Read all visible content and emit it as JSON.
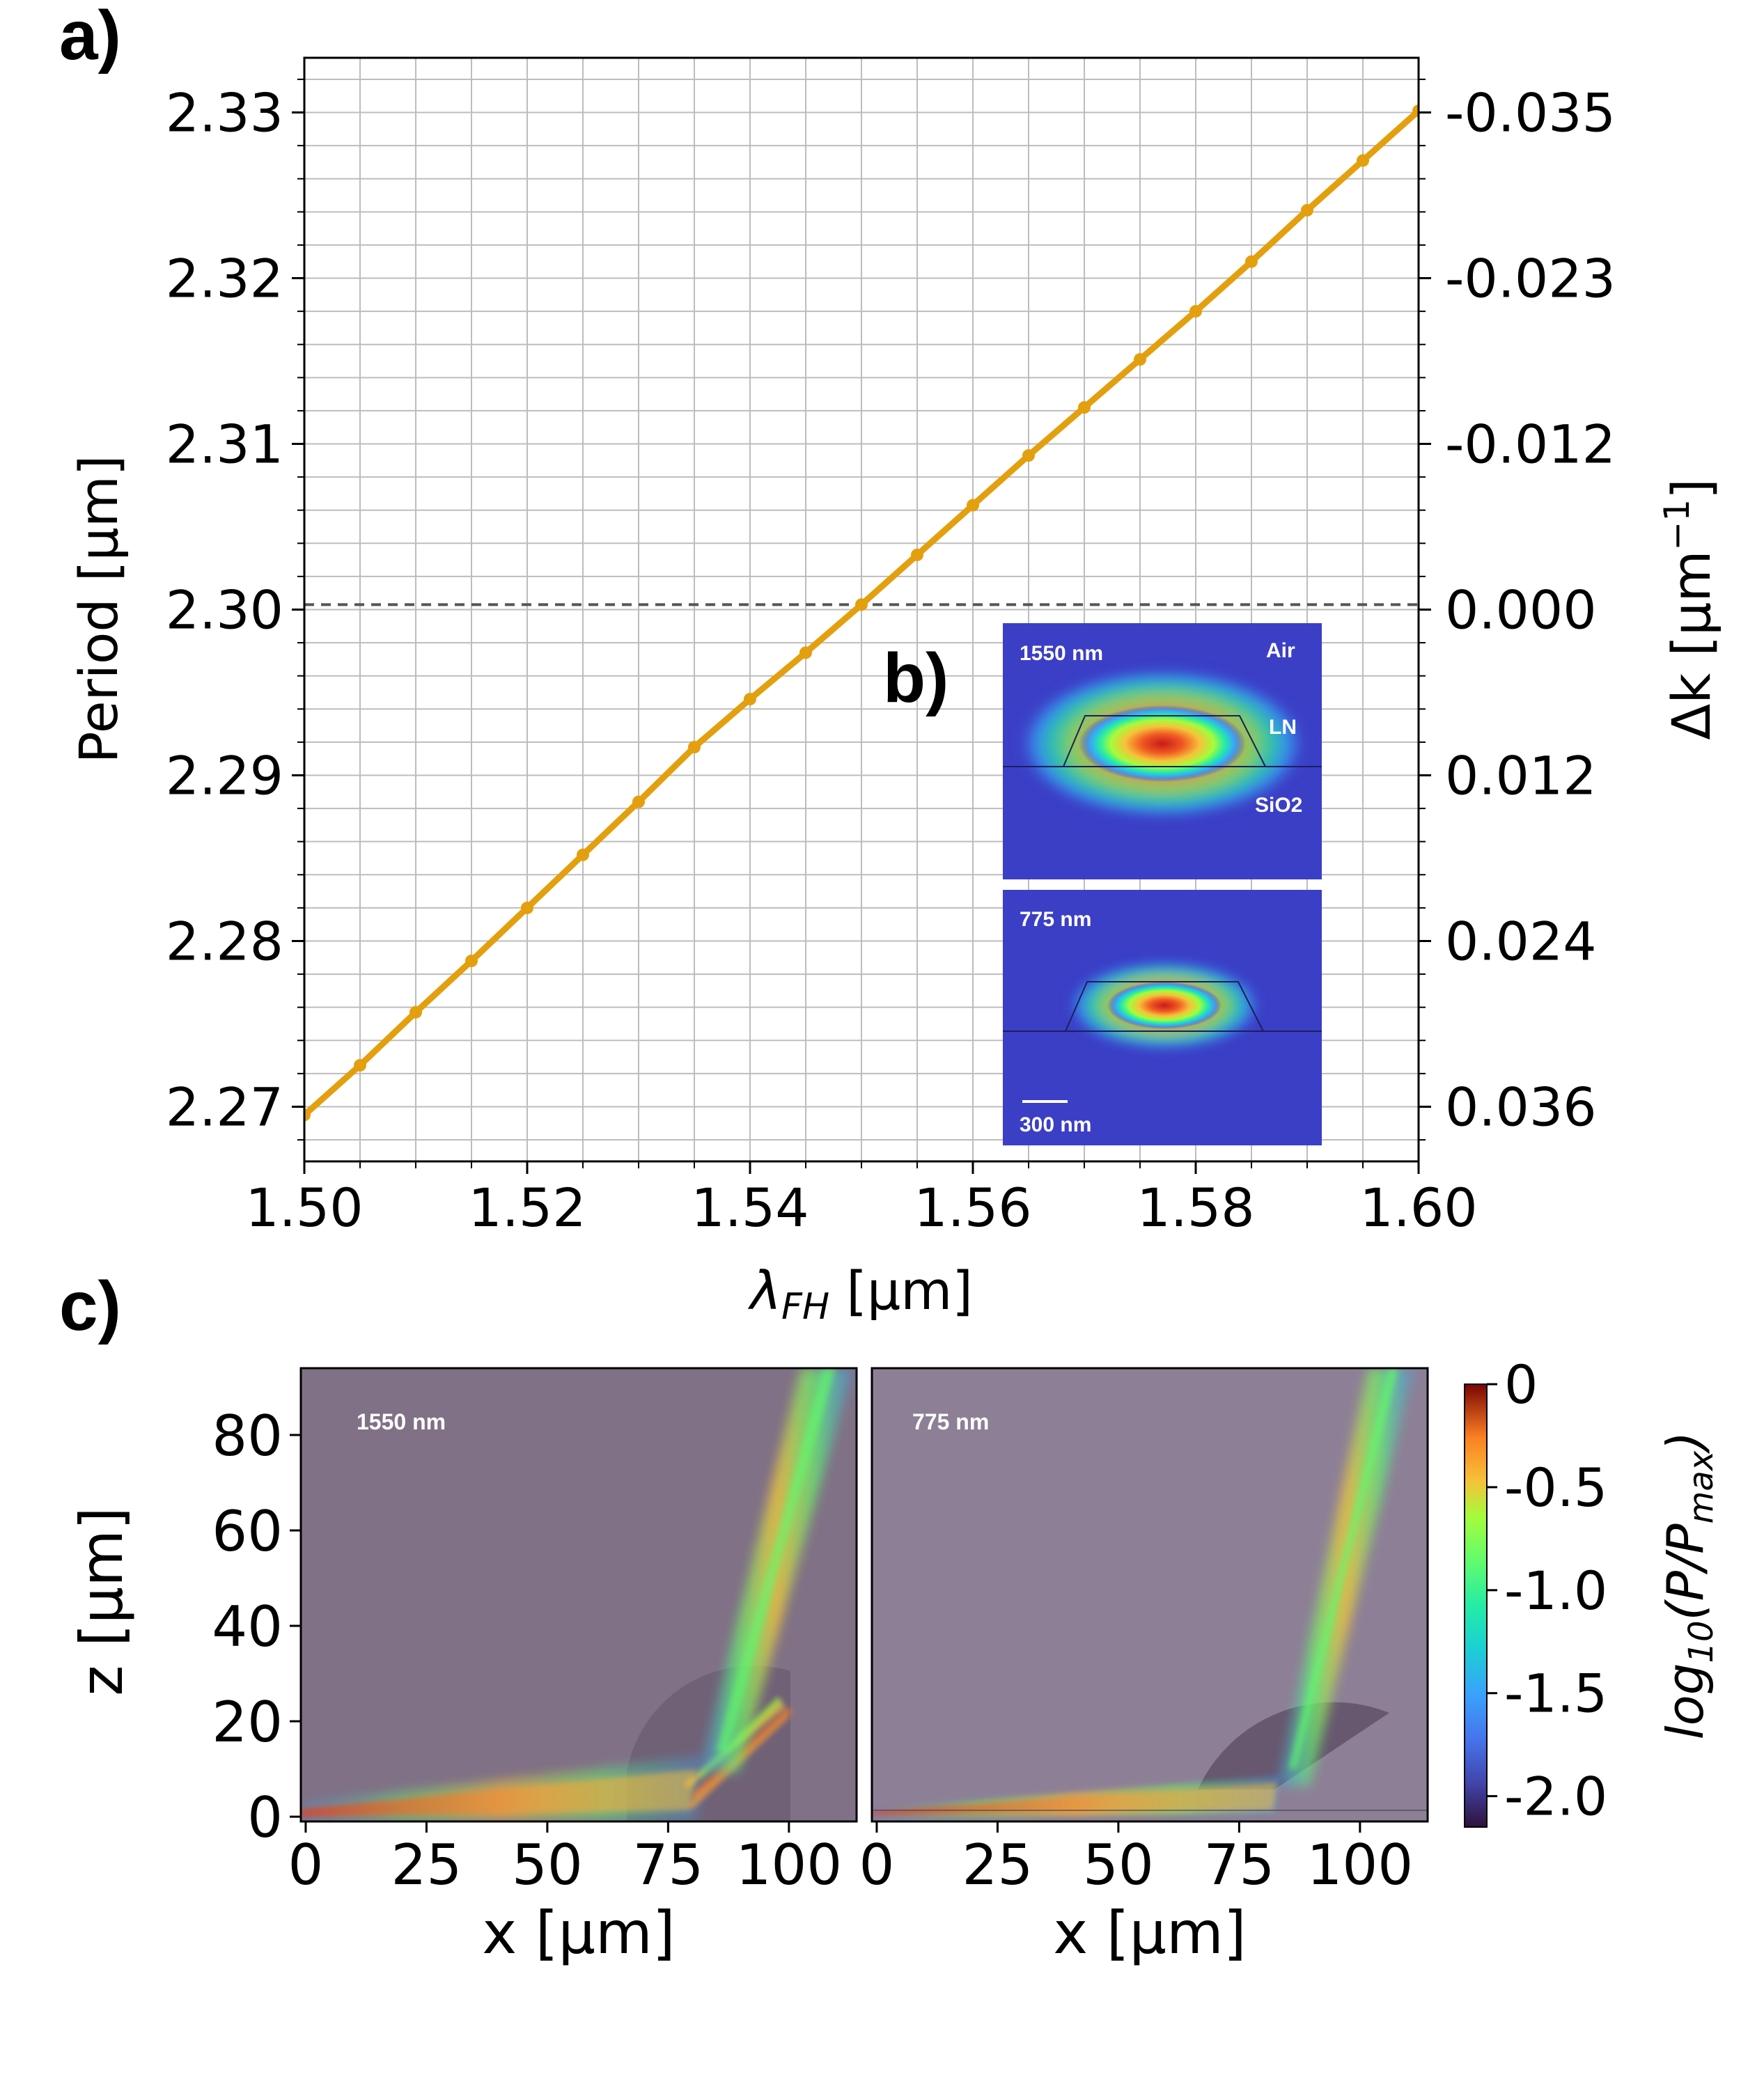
{
  "panel_labels": {
    "a": "a)",
    "b": "b)",
    "c": "c)"
  },
  "colors": {
    "curve": "#E39F0D",
    "grid": "#bdbdbd",
    "dashed": "#555555",
    "mode_bg": "#3b3fc6",
    "panel_bg_1550": "#807186",
    "panel_bg_775": "#8d8096"
  },
  "chart_data": [
    {
      "type": "line",
      "xlabel": "λFH [µm]",
      "xlabel_main": "λ",
      "xlabel_sub": "FH",
      "xlabel_unit": " [µm]",
      "ylabel": "Period [µm]",
      "y2label": "Δk [µm⁻¹]",
      "xlim": [
        1.5,
        1.6
      ],
      "ylim": [
        2.2667,
        2.3333
      ],
      "x_ticks": [
        "1.50",
        "1.52",
        "1.54",
        "1.56",
        "1.58",
        "1.60"
      ],
      "y_ticks": [
        "2.27",
        "2.28",
        "2.29",
        "2.30",
        "2.31",
        "2.32",
        "2.33"
      ],
      "y2_ticks": [
        "0.036",
        "0.024",
        "0.012",
        "0.000",
        "-0.012",
        "-0.023",
        "-0.035"
      ],
      "grid": true,
      "reference_line_y": 2.3003,
      "series": [
        {
          "x": [
            1.5,
            1.505,
            1.51,
            1.515,
            1.52,
            1.525,
            1.53,
            1.535,
            1.54,
            1.545,
            1.55,
            1.555,
            1.56,
            1.565,
            1.57,
            1.575,
            1.58,
            1.585,
            1.59,
            1.595,
            1.6
          ],
          "y": [
            2.2695,
            2.2725,
            2.2757,
            2.2788,
            2.282,
            2.2852,
            2.2884,
            2.2917,
            2.2946,
            2.2974,
            2.3003,
            2.3033,
            2.3063,
            2.3093,
            2.3122,
            2.3151,
            2.318,
            2.321,
            2.3241,
            2.3271,
            2.3301
          ]
        }
      ]
    },
    {
      "type": "heatmap",
      "panel": "1550 nm",
      "xlabel": "x [µm]",
      "ylabel": "z [µm]",
      "xlim": [
        -1,
        114
      ],
      "ylim": [
        -1,
        94
      ],
      "x_ticks": [
        "0",
        "25",
        "50",
        "75",
        "100"
      ],
      "y_ticks": [
        "0",
        "20",
        "40",
        "60",
        "80"
      ]
    },
    {
      "type": "heatmap",
      "panel": "775 nm",
      "xlabel": "x [µm]",
      "xlim": [
        -1,
        114
      ],
      "ylim": [
        -1,
        94
      ],
      "x_ticks": [
        "0",
        "25",
        "50",
        "75",
        "100"
      ]
    }
  ],
  "inset": {
    "top_label": "1550 nm",
    "air_label": "Air",
    "ln_label": "LN",
    "sio2_label": "SiO2",
    "bottom_label": "775 nm",
    "scale_label": "300 nm"
  },
  "colorbar": {
    "label": "log10(P/Pmax)",
    "label_main": "log",
    "label_sub": "10",
    "label_rest": "(P/P",
    "label_sub2": "max",
    "label_end": ")",
    "range": [
      -2.15,
      0
    ],
    "ticks": [
      "0",
      "-0.5",
      "-1.0",
      "-1.5",
      "-2.0"
    ],
    "tick_values": [
      0,
      -0.5,
      -1.0,
      -1.5,
      -2.0
    ]
  }
}
